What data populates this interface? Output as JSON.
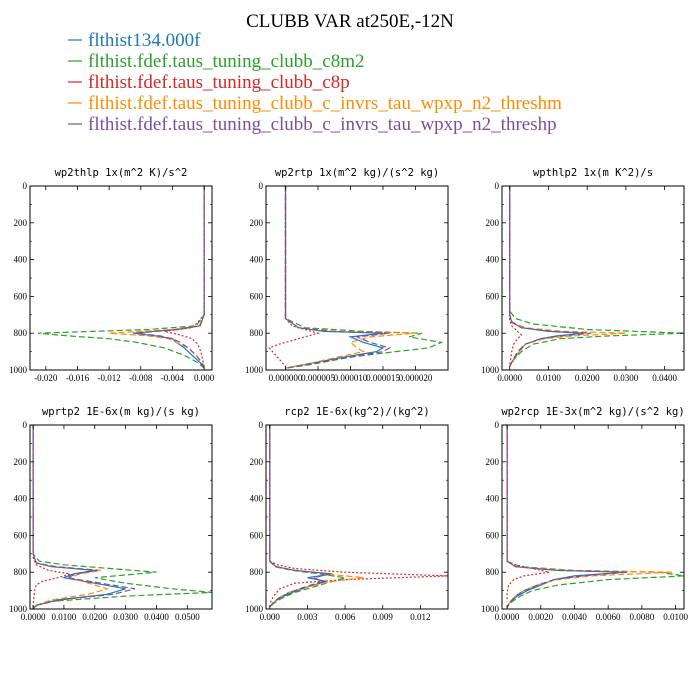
{
  "figure": {
    "title": "CLUBB VAR at250E,-12N"
  },
  "legend": [
    {
      "name": "flthist134.000f",
      "color": "#1f77b4"
    },
    {
      "name": "flthist.fdef.taus_tuning_clubb_c8m2",
      "color": "#2ca02c"
    },
    {
      "name": "flthist.fdef.taus_tuning_clubb_c8p",
      "color": "#d62728"
    },
    {
      "name": "flthist.fdef.taus_tuning_clubb_c_invrs_tau_wpxp_n2_threshm",
      "color": "#ff8c00"
    },
    {
      "name": "flthist.fdef.taus_tuning_clubb_c_invrs_tau_wpxp_n2_threshp",
      "color": "#7b4fa0"
    }
  ],
  "chart_data": [
    {
      "type": "line",
      "title": "wp2thlp  1x(m^2 K)/s^2",
      "xlim": [
        -0.022,
        0.001
      ],
      "ylim": [
        1000,
        0
      ],
      "xticks": [
        -0.02,
        -0.016,
        -0.012,
        -0.008,
        -0.004,
        0.0
      ],
      "xtick_labels": [
        "-0.020",
        "-0.016",
        "-0.012",
        "-0.008",
        "-0.004",
        "0.000"
      ],
      "yticks": [
        0,
        200,
        400,
        600,
        800,
        1000
      ],
      "ytick_labels": [
        "0",
        "200",
        "400",
        "600",
        "800",
        "1000"
      ],
      "series": [
        {
          "y": [
            0,
            700,
            760,
            780,
            800,
            815,
            830,
            850,
            880,
            920,
            960,
            990
          ],
          "x": [
            0,
            0,
            -0.0005,
            -0.0035,
            -0.009,
            -0.006,
            -0.004,
            -0.0035,
            -0.0025,
            -0.0015,
            -0.0005,
            0
          ]
        },
        {
          "y": [
            0,
            700,
            760,
            780,
            800,
            815,
            830,
            850,
            880,
            920,
            960,
            990
          ],
          "x": [
            0,
            0,
            -0.001,
            -0.007,
            -0.021,
            -0.017,
            -0.012,
            -0.0085,
            -0.005,
            -0.0025,
            -0.0008,
            0
          ]
        },
        {
          "y": [
            0,
            700,
            750,
            770,
            790,
            810,
            830,
            860,
            900,
            940,
            980
          ],
          "x": [
            0,
            0,
            -0.001,
            -0.0015,
            -0.005,
            -0.003,
            -0.0015,
            -0.0008,
            -0.0004,
            -0.0002,
            0
          ]
        },
        {
          "y": [
            0,
            700,
            760,
            780,
            800,
            815,
            830,
            850,
            880,
            920,
            960,
            990
          ],
          "x": [
            0,
            0,
            -0.0006,
            -0.004,
            -0.012,
            -0.007,
            -0.0045,
            -0.0035,
            -0.002,
            -0.001,
            -0.0003,
            0
          ]
        },
        {
          "y": [
            0,
            700,
            760,
            780,
            800,
            815,
            830,
            850,
            880,
            920,
            960,
            990
          ],
          "x": [
            0,
            0,
            -0.0005,
            -0.0035,
            -0.0085,
            -0.0055,
            -0.004,
            -0.003,
            -0.002,
            -0.001,
            -0.0003,
            0
          ]
        }
      ]
    },
    {
      "type": "line",
      "title": "wp2rtp  1x(m^2 kg)/(s^2 kg)",
      "xlim": [
        -3e-06,
        2.5e-05
      ],
      "ylim": [
        1000,
        0
      ],
      "xticks": [
        0,
        5e-06,
        1e-05,
        1.5e-05,
        2e-05
      ],
      "xtick_labels": [
        "0.000000",
        "0.000005",
        "0.000010",
        "0.000015",
        "0.000020"
      ],
      "yticks": [
        0,
        200,
        400,
        600,
        800,
        1000
      ],
      "ytick_labels": [
        "0",
        "200",
        "400",
        "600",
        "800",
        "1000"
      ],
      "series": [
        {
          "y": [
            0,
            720,
            770,
            790,
            800,
            820,
            850,
            880,
            900,
            930,
            970,
            990
          ],
          "x": [
            0,
            0,
            2e-06,
            6e-06,
            1.5e-05,
            1e-05,
            1.2e-05,
            1.5e-05,
            1.4e-05,
            9e-06,
            3e-06,
            0
          ]
        },
        {
          "y": [
            0,
            720,
            770,
            790,
            800,
            820,
            850,
            880,
            900,
            930,
            970,
            990
          ],
          "x": [
            0,
            0,
            3e-06,
            1.2e-05,
            2.1e-05,
            1.9e-05,
            2.4e-05,
            2.2e-05,
            1.7e-05,
            1e-05,
            4e-06,
            0
          ]
        },
        {
          "y": [
            0,
            720,
            760,
            780,
            800,
            830,
            860,
            880,
            900,
            940,
            980
          ],
          "x": [
            0,
            0,
            1e-06,
            3e-06,
            5e-06,
            2e-06,
            -1e-06,
            -2.5e-06,
            -2e-06,
            -1e-06,
            0
          ]
        },
        {
          "y": [
            0,
            720,
            770,
            790,
            800,
            820,
            850,
            880,
            900,
            930,
            970,
            990
          ],
          "x": [
            0,
            0,
            2e-06,
            8e-06,
            2e-05,
            1.3e-05,
            1e-05,
            1.1e-05,
            1.2e-05,
            8e-06,
            3e-06,
            0
          ]
        },
        {
          "y": [
            0,
            720,
            770,
            790,
            800,
            820,
            850,
            880,
            900,
            930,
            970,
            990
          ],
          "x": [
            0,
            0,
            2e-06,
            7e-06,
            1.6e-05,
            1.1e-05,
            1.3e-05,
            1.6e-05,
            1.5e-05,
            1e-05,
            3e-06,
            0
          ]
        }
      ]
    },
    {
      "type": "line",
      "title": "wpthlp2  1x(m K^2)/s",
      "xlim": [
        -0.002,
        0.045
      ],
      "ylim": [
        1000,
        0
      ],
      "xticks": [
        0,
        0.01,
        0.02,
        0.03,
        0.04
      ],
      "xtick_labels": [
        "0.0000",
        "0.0100",
        "0.0200",
        "0.0300",
        "0.0400"
      ],
      "yticks": [
        0,
        200,
        400,
        600,
        800,
        1000
      ],
      "ytick_labels": [
        "0",
        "200",
        "400",
        "600",
        "800",
        "1000"
      ],
      "series": [
        {
          "y": [
            0,
            700,
            740,
            770,
            790,
            800,
            815,
            830,
            860,
            900,
            940,
            980
          ],
          "x": [
            0,
            0,
            0.0005,
            0.003,
            0.01,
            0.019,
            0.012,
            0.008,
            0.004,
            0.0025,
            0.001,
            0
          ]
        },
        {
          "y": [
            0,
            680,
            720,
            750,
            780,
            800,
            815,
            830,
            860,
            900,
            940,
            980
          ],
          "x": [
            0,
            0,
            0.0015,
            0.006,
            0.02,
            0.045,
            0.025,
            0.013,
            0.006,
            0.003,
            0.0012,
            0
          ]
        },
        {
          "y": [
            0,
            730,
            760,
            790,
            810,
            830,
            860,
            900,
            950,
            980
          ],
          "x": [
            0,
            0,
            0.0005,
            0.002,
            0.003,
            0.002,
            0.001,
            0.0005,
            0.0002,
            0
          ]
        },
        {
          "y": [
            0,
            700,
            740,
            770,
            790,
            800,
            815,
            830,
            860,
            900,
            940,
            980
          ],
          "x": [
            0,
            0,
            0.0007,
            0.004,
            0.014,
            0.03,
            0.016,
            0.009,
            0.004,
            0.0025,
            0.001,
            0
          ]
        },
        {
          "y": [
            0,
            700,
            740,
            770,
            790,
            800,
            815,
            830,
            860,
            900,
            940,
            980
          ],
          "x": [
            0,
            0,
            0.0005,
            0.003,
            0.011,
            0.021,
            0.013,
            0.008,
            0.004,
            0.002,
            0.001,
            0
          ]
        }
      ]
    },
    {
      "type": "line",
      "title": "wprtp2  1E-6x(m kg)/(s kg)",
      "xlim": [
        -0.001,
        0.058
      ],
      "ylim": [
        1000,
        0
      ],
      "xticks": [
        0,
        0.01,
        0.02,
        0.03,
        0.04,
        0.05
      ],
      "xtick_labels": [
        "0.0000",
        "0.0100",
        "0.0200",
        "0.0300",
        "0.0400",
        "0.0500"
      ],
      "yticks": [
        0,
        200,
        400,
        600,
        800,
        1000
      ],
      "ytick_labels": [
        "0",
        "200",
        "400",
        "600",
        "800",
        "1000"
      ],
      "series": [
        {
          "y": [
            0,
            700,
            750,
            770,
            790,
            810,
            830,
            860,
            890,
            920,
            950,
            980,
            1000
          ],
          "x": [
            0,
            0,
            0.001,
            0.006,
            0.02,
            0.013,
            0.01,
            0.02,
            0.03,
            0.024,
            0.008,
            0.001,
            0
          ]
        },
        {
          "y": [
            0,
            700,
            740,
            760,
            780,
            800,
            830,
            860,
            890,
            910,
            930,
            960,
            990
          ],
          "x": [
            0,
            0,
            0.002,
            0.01,
            0.025,
            0.04,
            0.02,
            0.03,
            0.045,
            0.058,
            0.03,
            0.005,
            0
          ]
        },
        {
          "y": [
            0,
            720,
            760,
            790,
            810,
            830,
            850,
            870,
            900,
            950,
            990
          ],
          "x": [
            0,
            0,
            0.001,
            0.005,
            0.012,
            0.008,
            0.003,
            0.001,
            0.0005,
            0.0002,
            0
          ]
        },
        {
          "y": [
            0,
            700,
            750,
            770,
            790,
            810,
            830,
            860,
            890,
            920,
            950,
            980,
            1000
          ],
          "x": [
            0,
            0,
            0.001,
            0.008,
            0.022,
            0.015,
            0.012,
            0.018,
            0.024,
            0.018,
            0.006,
            0.001,
            0
          ]
        },
        {
          "y": [
            0,
            700,
            750,
            770,
            790,
            810,
            830,
            860,
            890,
            920,
            950,
            980,
            1000
          ],
          "x": [
            0,
            0,
            0.001,
            0.007,
            0.021,
            0.014,
            0.011,
            0.022,
            0.033,
            0.026,
            0.009,
            0.001,
            0
          ]
        }
      ]
    },
    {
      "type": "line",
      "title": "rcp2  1E-6x(kg^2)/(kg^2)",
      "xlim": [
        -0.0003,
        0.0142
      ],
      "ylim": [
        1000,
        0
      ],
      "xticks": [
        0,
        0.003,
        0.006,
        0.009,
        0.012
      ],
      "xtick_labels": [
        "0.000",
        "0.003",
        "0.006",
        "0.009",
        "0.012"
      ],
      "yticks": [
        0,
        200,
        400,
        600,
        800,
        1000
      ],
      "ytick_labels": [
        "0",
        "200",
        "400",
        "600",
        "800",
        "1000"
      ],
      "series": [
        {
          "y": [
            0,
            740,
            770,
            790,
            810,
            830,
            850,
            880,
            910,
            940,
            970,
            990
          ],
          "x": [
            0,
            0,
            0.0005,
            0.002,
            0.005,
            0.003,
            0.0045,
            0.003,
            0.0018,
            0.0008,
            0.0002,
            0
          ]
        },
        {
          "y": [
            0,
            740,
            770,
            790,
            810,
            830,
            850,
            880,
            910,
            940,
            970,
            990
          ],
          "x": [
            0,
            0,
            0.0004,
            0.0018,
            0.004,
            0.006,
            0.005,
            0.0035,
            0.002,
            0.001,
            0.0003,
            0
          ]
        },
        {
          "y": [
            0,
            740,
            760,
            780,
            800,
            820,
            840,
            860,
            890,
            930,
            970
          ],
          "x": [
            0,
            0,
            0.0006,
            0.002,
            0.006,
            0.0142,
            0.006,
            0.002,
            0.0008,
            0.0003,
            0
          ]
        },
        {
          "y": [
            0,
            740,
            770,
            790,
            810,
            830,
            850,
            880,
            910,
            940,
            970,
            990
          ],
          "x": [
            0,
            0,
            0.0004,
            0.002,
            0.0045,
            0.0075,
            0.005,
            0.003,
            0.0015,
            0.0007,
            0.0002,
            0
          ]
        },
        {
          "y": [
            0,
            740,
            770,
            790,
            810,
            830,
            850,
            880,
            910,
            940,
            970,
            990
          ],
          "x": [
            0,
            0,
            0.0005,
            0.002,
            0.0048,
            0.0035,
            0.0042,
            0.0028,
            0.0016,
            0.0007,
            0.0002,
            0
          ]
        }
      ]
    },
    {
      "type": "line",
      "title": "wp2rcp  1E-3x(m^2 kg)/(s^2 kg)",
      "xlim": [
        -0.0003,
        0.0105
      ],
      "ylim": [
        1000,
        0
      ],
      "xticks": [
        0,
        0.002,
        0.004,
        0.006,
        0.008,
        0.01
      ],
      "xtick_labels": [
        "0.0000",
        "0.0020",
        "0.0040",
        "0.0060",
        "0.0080",
        "0.0100"
      ],
      "yticks": [
        0,
        200,
        400,
        600,
        800,
        1000
      ],
      "ytick_labels": [
        "0",
        "200",
        "400",
        "600",
        "800",
        "1000"
      ],
      "series": [
        {
          "y": [
            0,
            740,
            770,
            790,
            800,
            820,
            840,
            870,
            900,
            930,
            960,
            990
          ],
          "x": [
            0,
            0,
            0.0005,
            0.003,
            0.007,
            0.004,
            0.0028,
            0.002,
            0.0012,
            0.0006,
            0.0002,
            0
          ]
        },
        {
          "y": [
            0,
            740,
            770,
            790,
            800,
            820,
            840,
            870,
            900,
            930,
            960,
            990
          ],
          "x": [
            0,
            0,
            0.0008,
            0.004,
            0.009,
            0.0105,
            0.006,
            0.003,
            0.0015,
            0.0008,
            0.0003,
            0
          ]
        },
        {
          "y": [
            0,
            740,
            760,
            780,
            800,
            820,
            840,
            870,
            910,
            960
          ],
          "x": [
            0,
            0,
            0.0005,
            0.0015,
            0.0025,
            0.001,
            0.0004,
            0.0001,
            0,
            0
          ]
        },
        {
          "y": [
            0,
            740,
            770,
            790,
            800,
            820,
            840,
            870,
            900,
            930,
            960,
            990
          ],
          "x": [
            0,
            0,
            0.0006,
            0.0035,
            0.0098,
            0.005,
            0.003,
            0.0018,
            0.001,
            0.0005,
            0.0002,
            0
          ]
        },
        {
          "y": [
            0,
            740,
            770,
            790,
            800,
            820,
            840,
            870,
            900,
            930,
            960,
            990
          ],
          "x": [
            0,
            0,
            0.0005,
            0.003,
            0.0072,
            0.0045,
            0.0028,
            0.0018,
            0.001,
            0.0005,
            0.0002,
            0
          ]
        }
      ]
    }
  ]
}
